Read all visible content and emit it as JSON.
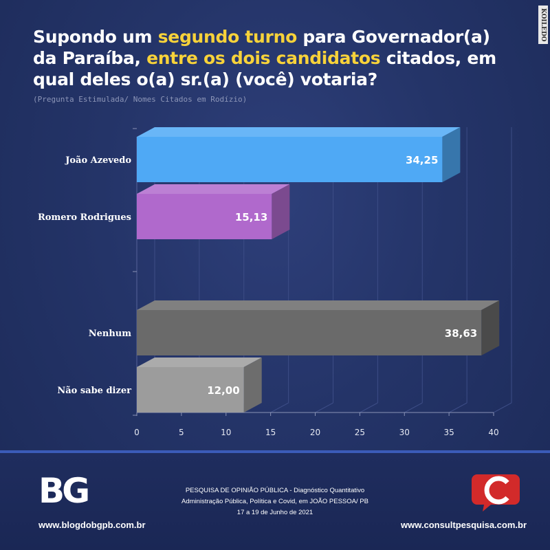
{
  "title": {
    "part1": "Supondo um ",
    "highlight1": "segundo turno",
    "part2": " para Governador(a) da Paraíba, ",
    "highlight2": "entre os dois candidatos",
    "part3": " citados, em qual deles o(a) sr.(a) (você) votaria?"
  },
  "subtitle": "(Pregunta Estimulada/ Nomes Citados em Rodízio)",
  "watermark": "KOILEDO",
  "chart_data": {
    "type": "bar",
    "orientation": "horizontal",
    "categories": [
      "João Azevedo",
      "Romero Rodrigues",
      "Nenhum",
      "Não sabe dizer"
    ],
    "values": [
      34.25,
      15.13,
      38.63,
      12.0
    ],
    "value_labels": [
      "34,25",
      "15,13",
      "38,63",
      "12,00"
    ],
    "colors": [
      "#4fa9f5",
      "#b069cc",
      "#6a6a6a",
      "#9c9c9c"
    ],
    "xlim": [
      0,
      40
    ],
    "xticks": [
      "0",
      "5",
      "10",
      "15",
      "20",
      "25",
      "30",
      "35",
      "40"
    ],
    "style": "3d"
  },
  "footer": {
    "logo_text": "BG",
    "left_url": "www.blogdobgpb.com.br",
    "line1": "PESQUISA DE OPINIÃO PÚBLICA - Diagnóstico Quantitativo",
    "line2": "Administração Pública, Política e Covid, em JOÃO PESSOA/ PB",
    "line3": "17 a 19 de Junho de 2021",
    "right_url": "www.consultpesquisa.com.br"
  }
}
